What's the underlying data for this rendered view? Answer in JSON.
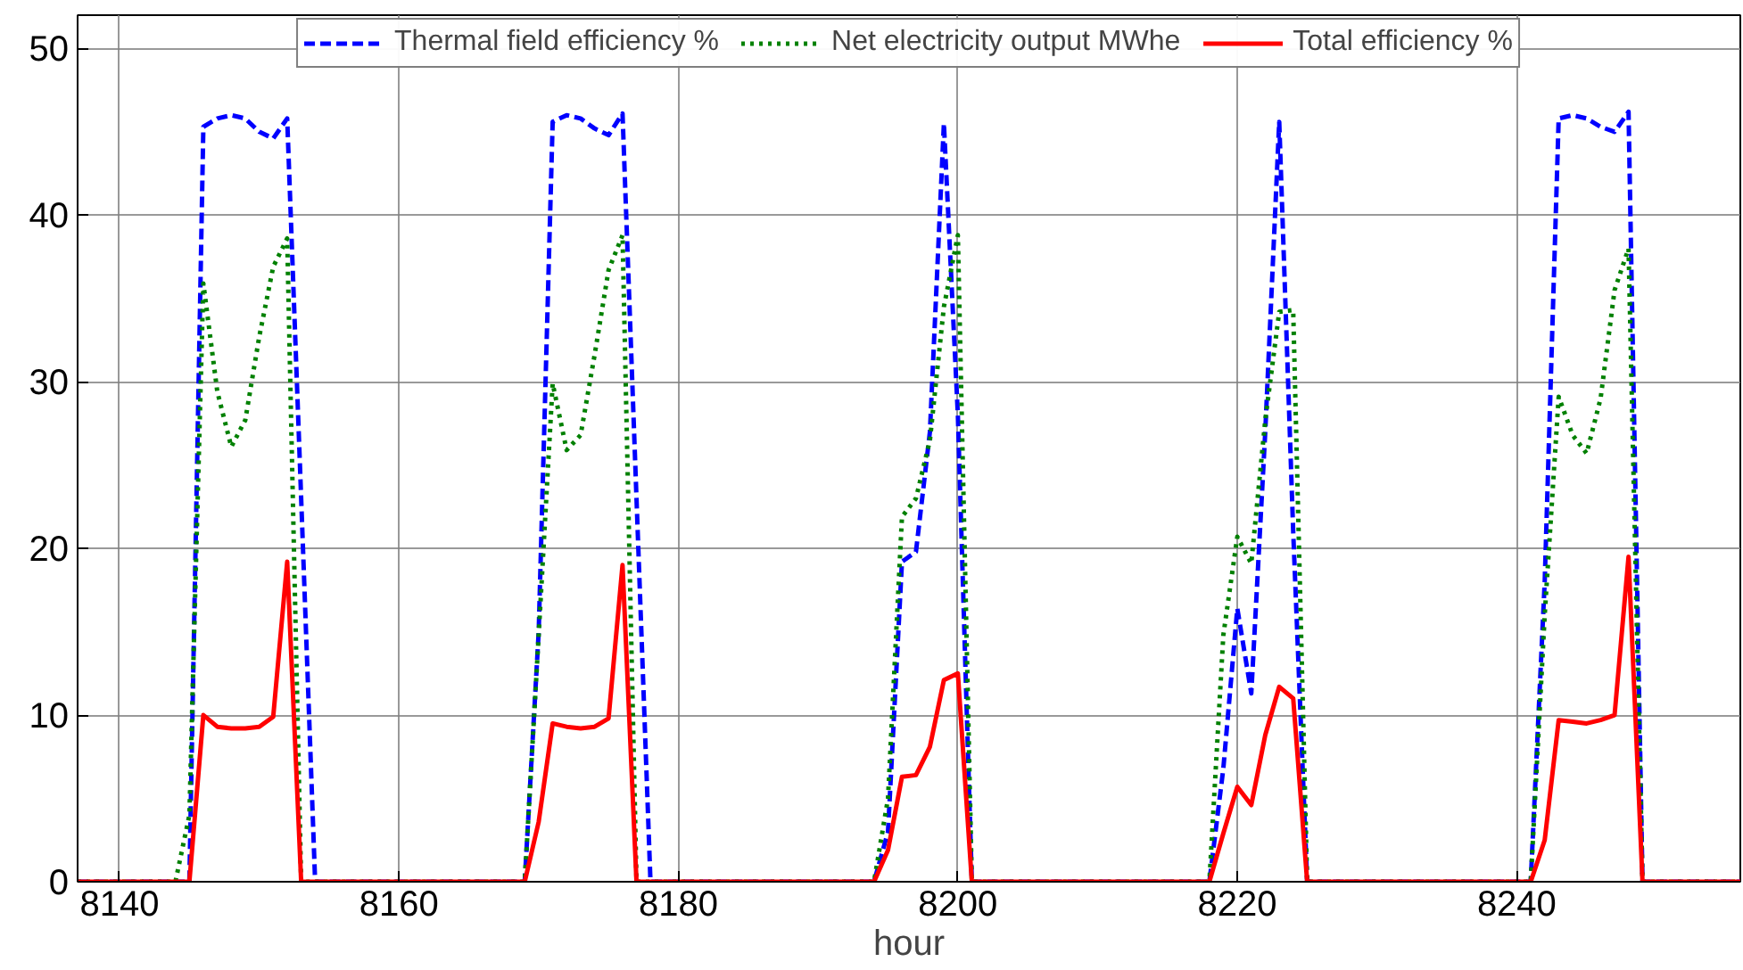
{
  "chart_data": {
    "type": "line",
    "xlabel": "hour",
    "x": [
      8137,
      8144,
      8145,
      8146,
      8147,
      8148,
      8149,
      8150,
      8151,
      8152,
      8153,
      8154,
      8168,
      8169,
      8170,
      8171,
      8172,
      8173,
      8174,
      8175,
      8176,
      8177,
      8178,
      8193,
      8194,
      8195,
      8196,
      8197,
      8198,
      8199,
      8200,
      8201,
      8217,
      8218,
      8219,
      8220,
      8221,
      8222,
      8223,
      8224,
      8225,
      8240,
      8241,
      8242,
      8243,
      8244,
      8245,
      8246,
      8247,
      8248,
      8249,
      8250,
      8256
    ],
    "series": [
      {
        "name": "Thermal field efficiency %",
        "color": "#0000ff",
        "line_style": "dashed",
        "values": [
          0,
          0,
          0,
          45.3,
          45.8,
          46,
          45.8,
          45.0,
          44.6,
          45.8,
          23,
          0,
          0,
          0,
          15,
          45.6,
          46,
          45.8,
          45.2,
          44.8,
          46.1,
          23,
          0,
          0,
          0,
          3,
          19.2,
          19.8,
          27,
          45.5,
          28,
          0,
          0,
          0,
          6.8,
          16.4,
          11.3,
          27,
          45.6,
          21,
          0,
          0,
          0,
          18,
          45.8,
          46,
          45.8,
          45.3,
          45,
          46.2,
          0,
          0,
          0
        ]
      },
      {
        "name": "Net electricity output MWhe",
        "color": "#008000",
        "line_style": "dotted",
        "values": [
          0,
          0,
          4,
          35.9,
          29.4,
          26.1,
          27.7,
          32.7,
          36.9,
          38.6,
          0,
          0,
          0,
          0,
          14.8,
          29.9,
          25.9,
          26.8,
          31.6,
          36.7,
          38.8,
          0,
          0,
          0,
          0,
          5,
          21.9,
          23,
          26.5,
          34.5,
          38.8,
          0,
          0,
          0,
          14.8,
          20.7,
          19.1,
          27.7,
          34.2,
          34.3,
          0,
          0,
          0,
          16,
          29.1,
          26.8,
          25.7,
          29,
          35.5,
          38,
          0,
          0,
          0
        ]
      },
      {
        "name": "Total efficiency %",
        "color": "#ff0000",
        "line_style": "solid",
        "values": [
          0,
          0,
          0,
          10,
          9.3,
          9.2,
          9.2,
          9.3,
          9.9,
          19.2,
          0,
          0,
          0,
          0,
          3.6,
          9.5,
          9.3,
          9.2,
          9.3,
          9.8,
          19.0,
          0,
          0,
          0,
          0,
          1.9,
          6.3,
          6.4,
          8.1,
          12.1,
          12.5,
          0,
          0,
          0,
          2.9,
          5.7,
          4.6,
          8.8,
          11.7,
          11.0,
          0,
          0,
          0,
          2.5,
          9.7,
          9.6,
          9.5,
          9.7,
          10.0,
          19.5,
          0,
          0,
          0
        ]
      }
    ],
    "xlim": [
      8137,
      8256
    ],
    "xticks": [
      8140,
      8160,
      8180,
      8200,
      8220,
      8240
    ],
    "ylim": [
      0,
      52
    ],
    "yticks": [
      0,
      10,
      20,
      30,
      40,
      50
    ],
    "grid": true,
    "legend": "top"
  }
}
